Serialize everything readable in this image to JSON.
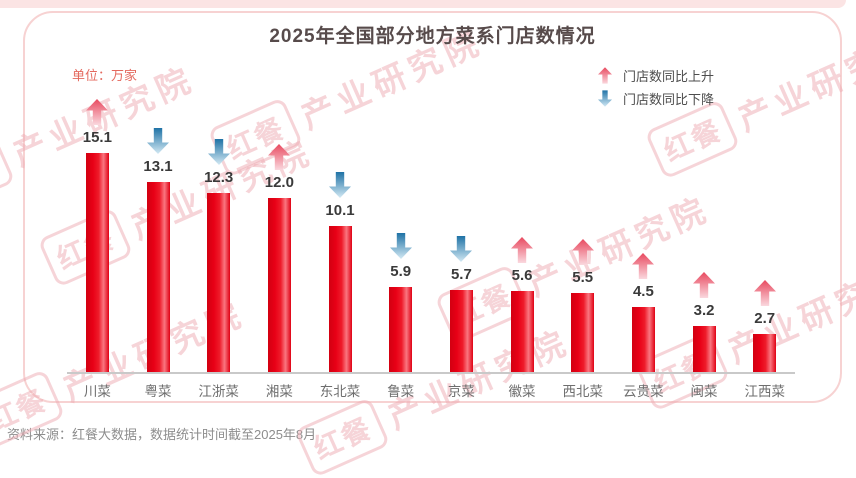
{
  "page": {
    "title": "2025年全国部分地方菜系门店数情况",
    "unit_label": "单位：万家",
    "source_note": "资料来源：红餐大数据，数据统计时间截至2025年8月"
  },
  "legend": {
    "up_label": "门店数同比上升",
    "down_label": "门店数同比下降"
  },
  "watermark": {
    "brand": "红餐",
    "org": "产业研究院"
  },
  "colors": {
    "bar_red": "#e60013",
    "up_arrow_red": "#e8495f",
    "down_arrow_blue": "#2280b2",
    "card_border_pink": "#f7d2d2",
    "title_text": "#574b4b",
    "unit_text": "#e4695e",
    "value_text": "#3a3a3a",
    "axis_text": "#6e6e6e",
    "source_text": "#8d8d8d"
  },
  "chart_data": {
    "type": "bar",
    "title": "2025年全国部分地方菜系门店数情况",
    "unit": "万家",
    "categories": [
      "川菜",
      "粤菜",
      "江浙菜",
      "湘菜",
      "东北菜",
      "鲁菜",
      "京菜",
      "徽菜",
      "西北菜",
      "云贵菜",
      "闽菜",
      "江西菜"
    ],
    "values": [
      15.1,
      13.1,
      12.3,
      12.0,
      10.1,
      5.9,
      5.7,
      5.6,
      5.5,
      4.5,
      3.2,
      2.7
    ],
    "labels": [
      "15.1",
      "13.1",
      "12.3",
      "12.0",
      "10.1",
      "5.9",
      "5.7",
      "5.6",
      "5.5",
      "4.5",
      "3.2",
      "2.7"
    ],
    "trend": [
      "up",
      "down",
      "down",
      "up",
      "down",
      "down",
      "down",
      "up",
      "up",
      "up",
      "up",
      "up"
    ],
    "trend_legend": {
      "up": "门店数同比上升",
      "down": "门店数同比下降"
    },
    "ylim": [
      0,
      16
    ],
    "grid": false,
    "legend_position": "top-right"
  }
}
